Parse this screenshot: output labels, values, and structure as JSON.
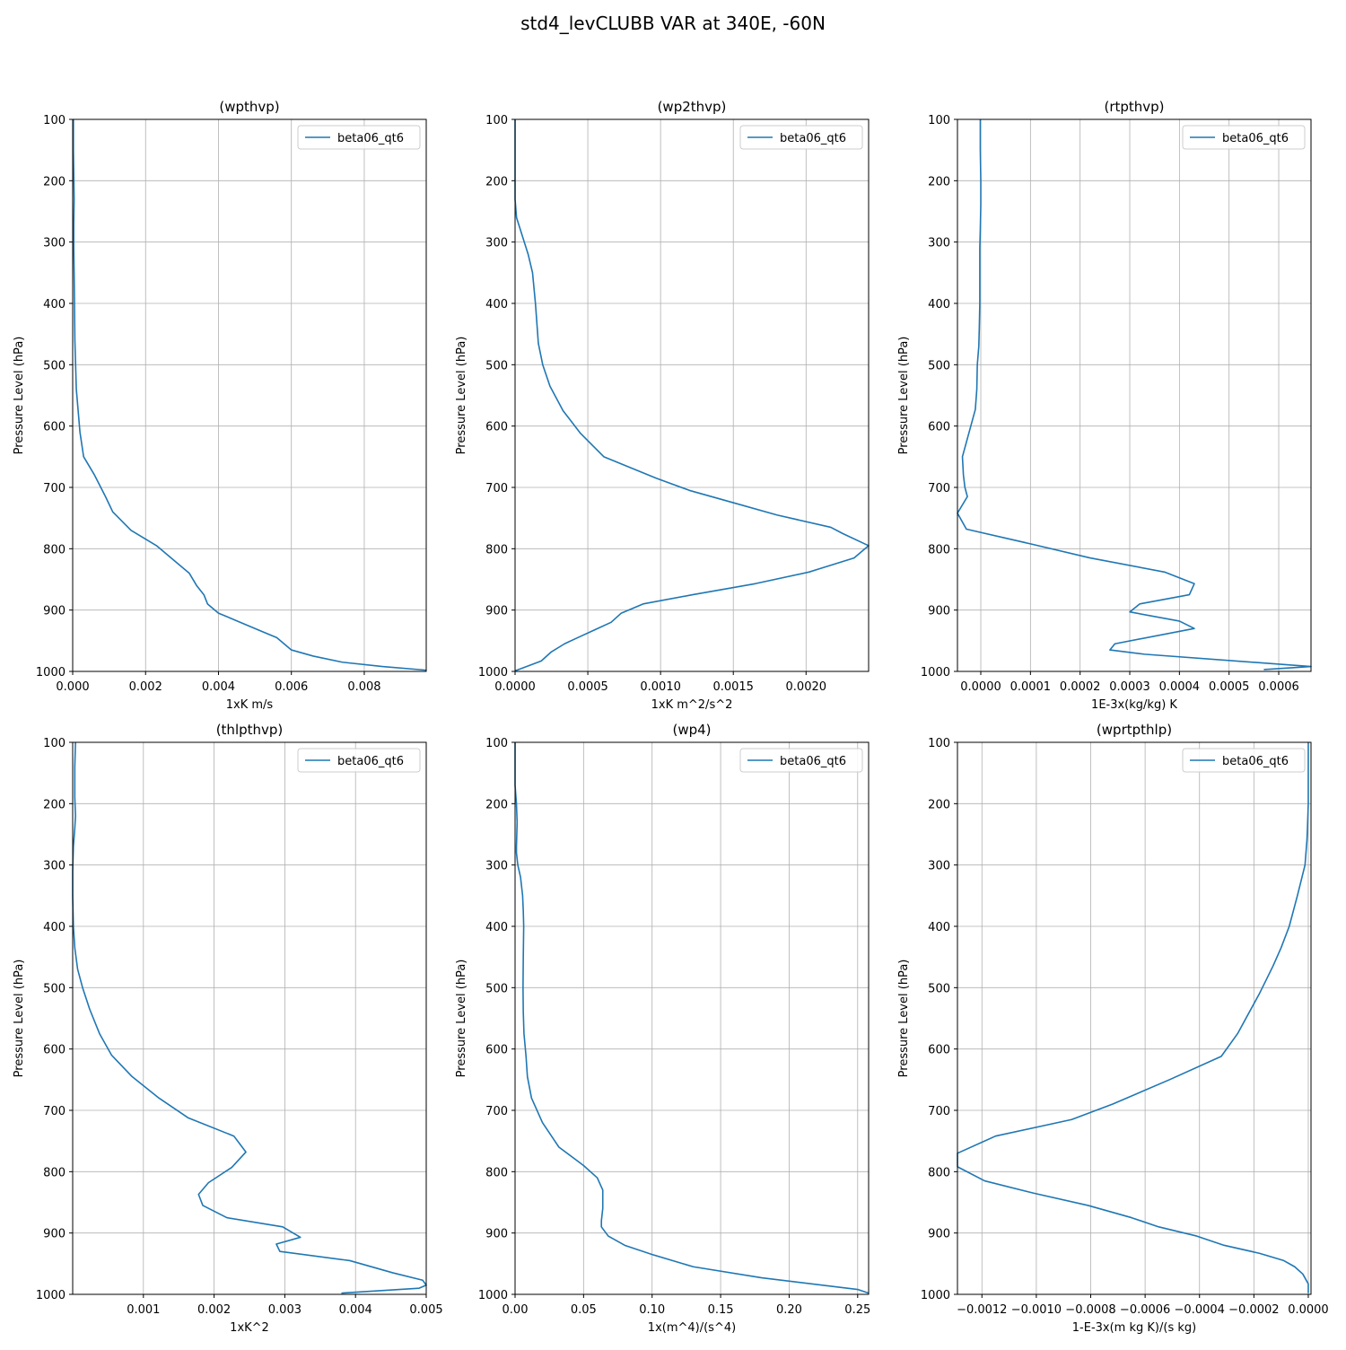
{
  "suptitle": "std4_levCLUBB VAR at 340E, -60N",
  "colors": {
    "series": "#1f77b4",
    "grid": "#b0b0b0",
    "axis": "#000000"
  },
  "chart_data": [
    {
      "type": "line",
      "title": "(wpthvp)",
      "xlabel": "1xK m/s",
      "ylabel": "Pressure Level (hPa)",
      "xlim": [
        0,
        0.0097
      ],
      "ylim": [
        1000,
        100
      ],
      "yaxis_inverted": true,
      "grid": true,
      "legend": "top-right",
      "xticks": [
        "0.000",
        "0.002",
        "0.004",
        "0.006",
        "0.008"
      ],
      "xtick_values": [
        0,
        0.002,
        0.004,
        0.006,
        0.008
      ],
      "yticks": [
        "100",
        "200",
        "300",
        "400",
        "500",
        "600",
        "700",
        "800",
        "900",
        "1000"
      ],
      "ytick_values": [
        100,
        200,
        300,
        400,
        500,
        600,
        700,
        800,
        900,
        1000
      ],
      "series": [
        {
          "name": "beta06_qt6",
          "x": [
            2e-05,
            2e-05,
            3e-05,
            4e-05,
            3e-05,
            3e-05,
            4e-05,
            5e-05,
            6e-05,
            8e-05,
            0.0001,
            0.00015,
            0.0002,
            0.0003,
            0.0006,
            0.0009,
            0.0011,
            0.0016,
            0.0023,
            0.0028,
            0.0032,
            0.0034,
            0.0036,
            0.0037,
            0.004,
            0.0046,
            0.0052,
            0.0056,
            0.0058,
            0.006,
            0.0066,
            0.0074,
            0.0085,
            0.0097
          ],
          "y": [
            100,
            150,
            190,
            230,
            270,
            310,
            350,
            400,
            460,
            500,
            540,
            575,
            610,
            650,
            680,
            715,
            740,
            770,
            795,
            820,
            840,
            860,
            875,
            890,
            905,
            920,
            935,
            945,
            955,
            965,
            975,
            985,
            992,
            998
          ]
        }
      ]
    },
    {
      "type": "line",
      "title": "(wp2thvp)",
      "xlabel": "1xK m^2/s^2",
      "ylabel": "Pressure Level (hPa)",
      "xlim": [
        0,
        0.00243
      ],
      "ylim": [
        1000,
        100
      ],
      "yaxis_inverted": true,
      "grid": true,
      "legend": "top-right",
      "xticks": [
        "0.0000",
        "0.0005",
        "0.0010",
        "0.0015",
        "0.0020"
      ],
      "xtick_values": [
        0,
        0.0005,
        0.001,
        0.0015,
        0.002
      ],
      "yticks": [
        "100",
        "200",
        "300",
        "400",
        "500",
        "600",
        "700",
        "800",
        "900",
        "1000"
      ],
      "ytick_values": [
        100,
        200,
        300,
        400,
        500,
        600,
        700,
        800,
        900,
        1000
      ],
      "series": [
        {
          "name": "beta06_qt6",
          "x": [
            0,
            0,
            0,
            0,
            1e-05,
            5e-05,
            9e-05,
            0.00012,
            0.00014,
            0.00016,
            0.00019,
            0.00024,
            0.00033,
            0.00045,
            0.00061,
            0.00097,
            0.0012,
            0.0015,
            0.0018,
            0.00217,
            0.00225,
            0.00243,
            0.00233,
            0.00202,
            0.00165,
            0.00122,
            0.00088,
            0.00073,
            0.00066,
            0.00055,
            0.00043,
            0.00034,
            0.00025,
            0.00018,
            8e-05,
            0
          ],
          "y": [
            100,
            150,
            200,
            230,
            260,
            290,
            320,
            350,
            400,
            465,
            500,
            535,
            575,
            612,
            650,
            685,
            705,
            725,
            745,
            765,
            775,
            795,
            815,
            838,
            857,
            875,
            890,
            905,
            920,
            932,
            945,
            955,
            968,
            983,
            992,
            999
          ]
        }
      ]
    },
    {
      "type": "line",
      "title": "(rtpthvp)",
      "xlabel": "1E-3x(kg/kg) K",
      "ylabel": "Pressure Level (hPa)",
      "xlim": [
        -4.7e-05,
        0.000665
      ],
      "ylim": [
        1000,
        100
      ],
      "yaxis_inverted": true,
      "grid": true,
      "legend": "top-right",
      "xticks": [
        "0.0000",
        "0.0001",
        "0.0002",
        "0.0003",
        "0.0004",
        "0.0005",
        "0.0006"
      ],
      "xtick_values": [
        0,
        0.0001,
        0.0002,
        0.0003,
        0.0004,
        0.0005,
        0.0006
      ],
      "yticks": [
        "100",
        "200",
        "300",
        "400",
        "500",
        "600",
        "700",
        "800",
        "900",
        "1000"
      ],
      "ytick_values": [
        100,
        200,
        300,
        400,
        500,
        600,
        700,
        800,
        900,
        1000
      ],
      "series": [
        {
          "name": "beta06_qt6",
          "x": [
            -1e-06,
            -1e-06,
            0,
            0,
            -1e-06,
            -2e-06,
            -2e-06,
            -2e-06,
            -3e-06,
            -4e-06,
            -7e-06,
            -8e-06,
            -1.1e-05,
            -3.7e-05,
            -3.5e-05,
            -3.2e-05,
            -2.7e-05,
            -4.7e-05,
            -2.9e-05,
            0.0001,
            0.00022,
            0.00037,
            0.00043,
            0.00042,
            0.00032,
            0.0003,
            0.0004,
            0.00043,
            0.00027,
            0.00026,
            0.00033,
            0.000665,
            0.00057
          ],
          "y": [
            100,
            150,
            200,
            240,
            280,
            310,
            350,
            400,
            440,
            470,
            500,
            540,
            573,
            650,
            680,
            700,
            715,
            742,
            768,
            792,
            815,
            838,
            857,
            875,
            890,
            903,
            918,
            930,
            955,
            965,
            972,
            992,
            997
          ]
        }
      ]
    },
    {
      "type": "line",
      "title": "(thlpthvp)",
      "xlabel": "1xK^2",
      "ylabel": "Pressure Level (hPa)",
      "xlim": [
        0,
        0.005
      ],
      "ylim": [
        1000,
        100
      ],
      "yaxis_inverted": true,
      "grid": true,
      "legend": "top-right",
      "xticks": [
        "0.001",
        "0.002",
        "0.003",
        "0.004",
        "0.005"
      ],
      "xtick_values": [
        0.001,
        0.002,
        0.003,
        0.004,
        0.005
      ],
      "yticks": [
        "100",
        "200",
        "300",
        "400",
        "500",
        "600",
        "700",
        "800",
        "900",
        "1000"
      ],
      "ytick_values": [
        100,
        200,
        300,
        400,
        500,
        600,
        700,
        800,
        900,
        1000
      ],
      "series": [
        {
          "name": "beta06_qt6",
          "x": [
            4e-05,
            3e-05,
            3e-05,
            4e-05,
            3e-05,
            1e-05,
            0,
            0,
            1e-05,
            3e-05,
            7e-05,
            0.00014,
            0.00024,
            0.00038,
            0.00055,
            0.00084,
            0.00122,
            0.00163,
            0.00228,
            0.00245,
            0.00225,
            0.00192,
            0.00178,
            0.00184,
            0.00218,
            0.00297,
            0.00322,
            0.00288,
            0.00293,
            0.00392,
            0.00453,
            0.00495,
            0.005,
            0.0049,
            0.0038
          ],
          "y": [
            100,
            140,
            190,
            220,
            240,
            270,
            310,
            350,
            400,
            435,
            470,
            500,
            535,
            575,
            610,
            645,
            680,
            712,
            742,
            768,
            793,
            818,
            837,
            855,
            875,
            890,
            907,
            918,
            930,
            945,
            965,
            977,
            985,
            990,
            998
          ]
        }
      ]
    },
    {
      "type": "line",
      "title": "(wp4)",
      "xlabel": "1x(m^4)/(s^4)",
      "ylabel": "Pressure Level (hPa)",
      "xlim": [
        0,
        0.258
      ],
      "ylim": [
        1000,
        100
      ],
      "yaxis_inverted": true,
      "grid": true,
      "legend": "top-right",
      "xticks": [
        "0.00",
        "0.05",
        "0.10",
        "0.15",
        "0.20",
        "0.25"
      ],
      "xtick_values": [
        0,
        0.05,
        0.1,
        0.15,
        0.2,
        0.25
      ],
      "yticks": [
        "100",
        "200",
        "300",
        "400",
        "500",
        "600",
        "700",
        "800",
        "900",
        "1000"
      ],
      "ytick_values": [
        100,
        200,
        300,
        400,
        500,
        600,
        700,
        800,
        900,
        1000
      ],
      "series": [
        {
          "name": "beta06_qt6",
          "x": [
            0,
            0,
            0,
            0.001,
            0.0015,
            0.0012,
            0.001,
            0.001,
            0.002,
            0.004,
            0.0055,
            0.006,
            0.0063,
            0.006,
            0.0058,
            0.006,
            0.0065,
            0.008,
            0.009,
            0.012,
            0.02,
            0.032,
            0.05,
            0.06,
            0.064,
            0.064,
            0.063,
            0.063,
            0.068,
            0.08,
            0.1,
            0.13,
            0.18,
            0.25,
            0.258
          ],
          "y": [
            100,
            130,
            170,
            200,
            230,
            255,
            270,
            280,
            300,
            320,
            350,
            375,
            400,
            450,
            500,
            540,
            575,
            612,
            645,
            680,
            720,
            760,
            790,
            810,
            830,
            860,
            880,
            890,
            905,
            920,
            935,
            955,
            973,
            992,
            998
          ]
        }
      ]
    },
    {
      "type": "line",
      "title": "(wprtpthlp)",
      "xlabel": "1-E-3x(m kg K)/(s kg)",
      "ylabel": "Pressure Level (hPa)",
      "xlim": [
        -0.00129,
        1e-05
      ],
      "ylim": [
        1000,
        100
      ],
      "yaxis_inverted": true,
      "grid": true,
      "legend": "top-right",
      "xticks": [
        "−0.0012",
        "−0.0010",
        "−0.0008",
        "−0.0006",
        "−0.0004",
        "−0.0002",
        "0.0000"
      ],
      "xtick_values": [
        -0.0012,
        -0.001,
        -0.0008,
        -0.0006,
        -0.0004,
        -0.0002,
        0
      ],
      "yticks": [
        "100",
        "200",
        "300",
        "400",
        "500",
        "600",
        "700",
        "800",
        "900",
        "1000"
      ],
      "ytick_values": [
        100,
        200,
        300,
        400,
        500,
        600,
        700,
        800,
        900,
        1000
      ],
      "series": [
        {
          "name": "beta06_qt6",
          "x": [
            0,
            0,
            0,
            -3e-06,
            -5e-06,
            -1.2e-05,
            -4e-05,
            -7e-05,
            -0.0001,
            -0.00013,
            -0.00018,
            -0.00026,
            -0.00032,
            -0.00051,
            -0.00072,
            -0.00087,
            -0.00115,
            -0.00129,
            -0.00129,
            -0.00119,
            -0.00101,
            -0.00081,
            -0.00065,
            -0.00055,
            -0.00041,
            -0.00031,
            -0.00018,
            -9e-05,
            -5e-05,
            -2e-05,
            0,
            0
          ],
          "y": [
            100,
            150,
            200,
            240,
            260,
            300,
            350,
            400,
            435,
            465,
            510,
            575,
            612,
            650,
            690,
            715,
            742,
            770,
            792,
            815,
            835,
            855,
            875,
            890,
            905,
            920,
            933,
            945,
            955,
            967,
            983,
            998
          ]
        }
      ]
    }
  ]
}
